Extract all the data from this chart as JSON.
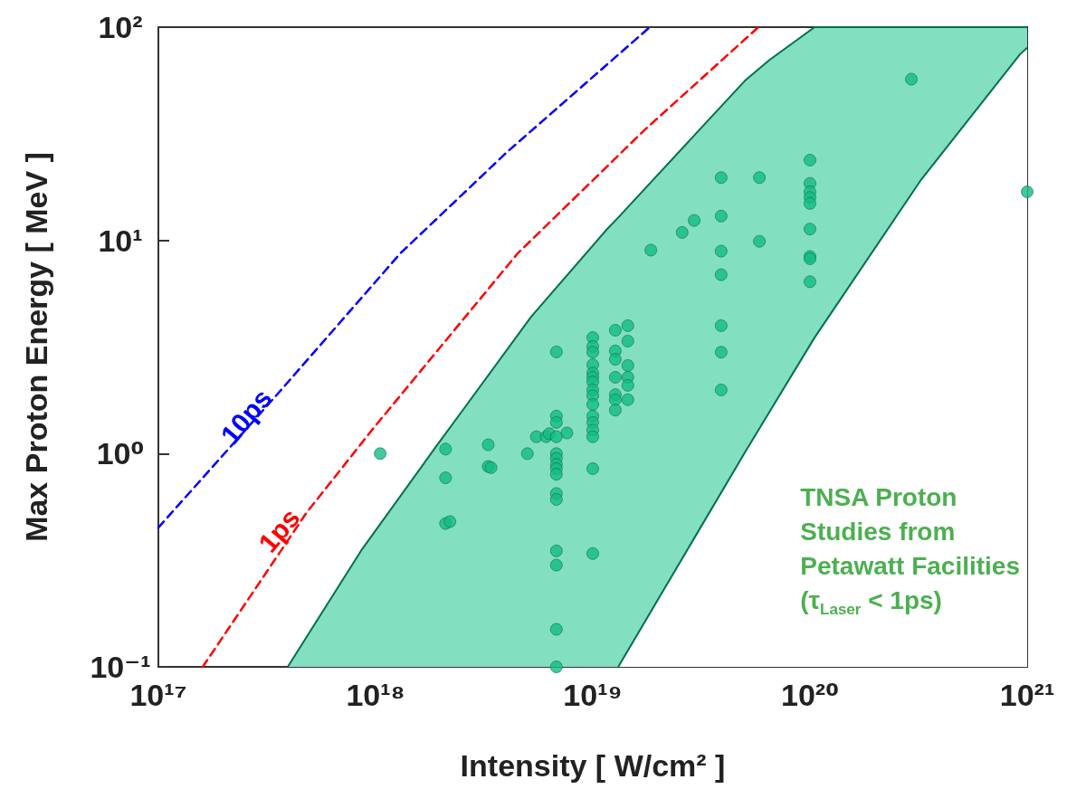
{
  "chart_data": {
    "type": "scatter",
    "xlabel": "Intensity [ W/cm² ]",
    "ylabel": "Max Proton Energy [ MeV ]",
    "log": "xy",
    "marker": "circle",
    "xlim": [
      1e+17,
      1e+21
    ],
    "ylim": [
      0.1,
      100
    ],
    "xticks": [
      {
        "value": 1e+17,
        "label": "10¹⁷"
      },
      {
        "value": 1e+18,
        "label": "10¹⁸"
      },
      {
        "value": 1e+19,
        "label": "10¹⁹"
      },
      {
        "value": 1e+20,
        "label": "10²⁰"
      },
      {
        "value": 1e+21,
        "label": "10²¹"
      }
    ],
    "yticks": [
      {
        "value": 0.1,
        "label": "10⁻¹"
      },
      {
        "value": 1,
        "label": "10⁰"
      },
      {
        "value": 10,
        "label": "10¹"
      },
      {
        "value": 100,
        "label": "10²"
      }
    ],
    "annotations": [
      "TNSA Proton\nStudies from\nPetawatt Facilities\n(τ$_{Laser}$ < 1ps)"
    ],
    "series": [
      {
        "type": "area",
        "color": "#82dfc0",
        "marker": "none",
        "x": [
          3.94e+17,
          8.66e+17,
          1.9e+18,
          5.2e+18,
          1.155e+19,
          1.31e+19,
          3.01e+19,
          5.01e+19,
          6.49e+19,
          1.05e+20,
          3.22e+20,
          9.26e+20,
          1e+21
        ],
        "values": [
          0.1,
          0.356,
          1.08,
          4.38,
          11.2,
          12.8,
          32,
          56,
          70,
          100,
          100,
          100,
          100
        ]
      },
      {
        "type": "area",
        "color": "#ffffff",
        "marker": "none",
        "x": [
          1.31e+19,
          3.01e+19,
          5.01e+19,
          6.49e+19,
          1.05e+20,
          3.22e+20,
          9.26e+20,
          1e+21
        ],
        "values": [
          0.1,
          0.42,
          1.01,
          1.56,
          3.5,
          19,
          74.5,
          80
        ]
      },
      {
        "type": "line",
        "name": "10ps",
        "color": "#0000ff",
        "line_style": "dashed",
        "marker": "none",
        "x": [
          1e+17,
          3.58e+17,
          1.3e+18,
          4.02e+18,
          1.83e+19
        ],
        "values": [
          0.45,
          1.93,
          8.69,
          25.9,
          100
        ]
      },
      {
        "type": "line",
        "name": "1ps",
        "color": "#ff0000",
        "line_style": "dashed",
        "marker": "none",
        "x": [
          1.6e+17,
          4.82e+17,
          9.62e+17,
          4.51e+18,
          1.74e+19,
          5.79e+19
        ],
        "values": [
          0.1,
          0.53,
          1.29,
          8.69,
          33.1,
          100
        ]
      },
      {
        "color": "#12bd82",
        "x": [
          1.05e+18,
          2.1e+18,
          2.1e+18,
          2.1e+18,
          2.2e+18,
          3.3e+18,
          3.3e+18,
          3.4e+18,
          5e+18,
          5.5e+18,
          6.1e+18,
          6.3e+18,
          7.6e+18,
          6.8e+18,
          6.8e+18,
          6.8e+18,
          6.8e+18,
          6.8e+18,
          6.8e+18,
          6.8e+18,
          6.8e+18,
          6.8e+18,
          6.8e+18,
          6.8e+18,
          6.8e+18,
          6.8e+18,
          6.8e+18,
          6.8e+18,
          1e+19,
          1e+19,
          1e+19,
          1e+19,
          1e+19,
          1e+19,
          1e+19,
          1e+19,
          1e+19,
          1e+19,
          1e+19,
          1e+19,
          1e+19,
          1e+19,
          1e+19,
          1e+19,
          1.27e+19,
          1.27e+19,
          1.27e+19,
          1.27e+19,
          1.27e+19,
          1.27e+19,
          1.27e+19,
          1.45e+19,
          1.45e+19,
          1.45e+19,
          1.45e+19,
          1.45e+19,
          1.45e+19,
          1.85e+19,
          2.58e+19,
          2.93e+19,
          3.9e+19,
          3.9e+19,
          3.9e+19,
          3.9e+19,
          3.9e+19,
          3.9e+19,
          3.9e+19,
          5.85e+19,
          5.85e+19,
          1e+20,
          1e+20,
          1e+20,
          1e+20,
          1e+20,
          1e+20,
          1e+20,
          1e+20,
          1e+20,
          2.93e+20,
          1e+21
        ],
        "values": [
          1.0,
          1.05,
          0.77,
          0.47,
          0.48,
          1.1,
          0.87,
          0.86,
          1.0,
          1.2,
          1.2,
          1.24,
          1.25,
          3.0,
          1.5,
          1.4,
          1.2,
          1.0,
          0.95,
          0.89,
          0.85,
          0.8,
          0.65,
          0.61,
          0.35,
          0.3,
          0.15,
          0.1,
          3.5,
          3.18,
          2.99,
          2.61,
          2.39,
          2.28,
          2.17,
          1.99,
          1.87,
          1.7,
          1.5,
          1.4,
          1.29,
          1.2,
          0.85,
          0.34,
          3.79,
          3.03,
          2.77,
          2.28,
          1.89,
          1.79,
          1.6,
          3.98,
          3.37,
          2.59,
          2.28,
          2.09,
          1.79,
          9.0,
          10.9,
          12.4,
          19.7,
          13,
          8.9,
          6.9,
          3.98,
          2.99,
          1.99,
          19.7,
          9.9,
          23.8,
          18.5,
          16.9,
          15.9,
          14.9,
          11.3,
          8.4,
          8.2,
          6.4,
          57,
          16.9
        ]
      }
    ]
  }
}
